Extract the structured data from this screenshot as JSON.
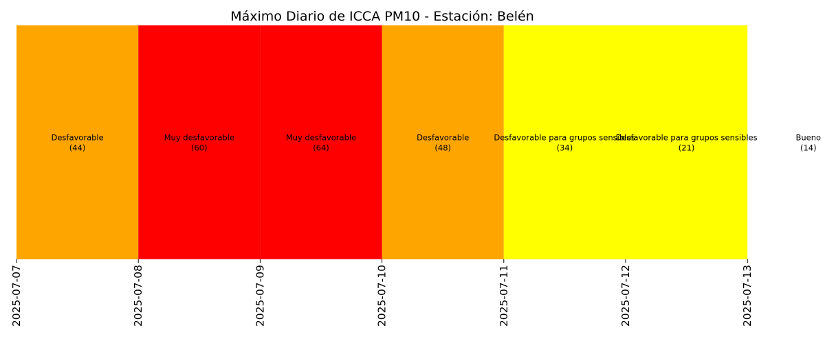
{
  "chart_data": {
    "type": "heatmap",
    "title": "Máximo Diario de ICCA PM10 - Estación: Belén",
    "xlabel": "",
    "ylabel": "",
    "grid": false,
    "legend": "none",
    "x_ticks": [
      "2025-07-07",
      "2025-07-08",
      "2025-07-09",
      "2025-07-10",
      "2025-07-11",
      "2025-07-12",
      "2025-07-13"
    ],
    "cells": [
      {
        "category": "Desfavorable",
        "value": "(44)",
        "color": "#FFA500"
      },
      {
        "category": "Muy desfavorable",
        "value": "(60)",
        "color": "#FF0000"
      },
      {
        "category": "Muy desfavorable",
        "value": "(64)",
        "color": "#FF0000"
      },
      {
        "category": "Desfavorable",
        "value": "(48)",
        "color": "#FFA500"
      },
      {
        "category": "Desfavorable para grupos sensibles",
        "value": "(34)",
        "color": "#FFFF00"
      },
      {
        "category": "Desfavorable para grupos sensibles",
        "value": "(21)",
        "color": "#FFFF00"
      },
      {
        "category": "Bueno",
        "value": "(14)",
        "color": null
      }
    ]
  }
}
